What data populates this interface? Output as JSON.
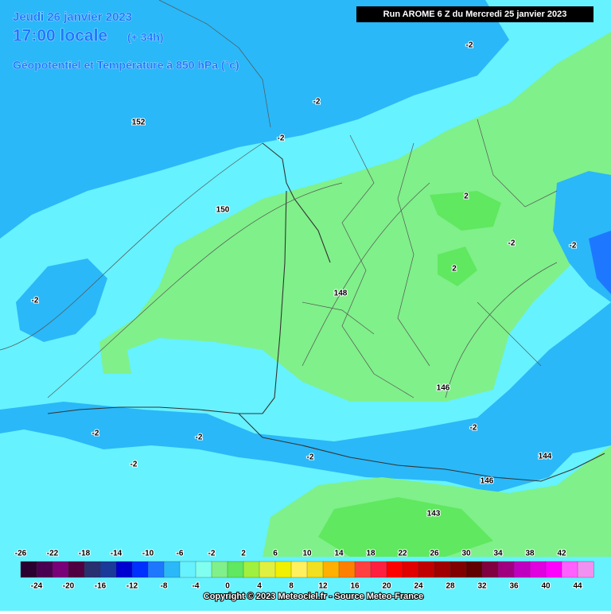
{
  "header": {
    "date": "Jeudi 26 janvier 2023",
    "time": "17:00 locale",
    "lead": "(+ 34h)",
    "field": "Géopotentiel et Température à 850 hPa (°c)",
    "run": "Run AROME 6 Z du Mercredi 25 janvier 2023"
  },
  "contour_labels": [
    "152",
    "150",
    "148",
    "146",
    "146",
    "144",
    "143"
  ],
  "temperature_labels": [
    "-2",
    "-2",
    "-2",
    "-2",
    "-2",
    "-2",
    "-2",
    "-2",
    "-2",
    "-2",
    "-2",
    "2",
    "2"
  ],
  "scale": {
    "upper_labels": [
      -26,
      -22,
      -18,
      -14,
      -10,
      -6,
      -2,
      2,
      6,
      10,
      14,
      18,
      22,
      26,
      30,
      34,
      38,
      42
    ],
    "lower_labels": [
      -24,
      -20,
      -16,
      -12,
      -8,
      -4,
      0,
      4,
      8,
      12,
      16,
      20,
      24,
      28,
      32,
      36,
      40,
      44
    ]
  },
  "copyright": "Copyright © 2023 Meteociel.fr - Source Meteo-France"
}
